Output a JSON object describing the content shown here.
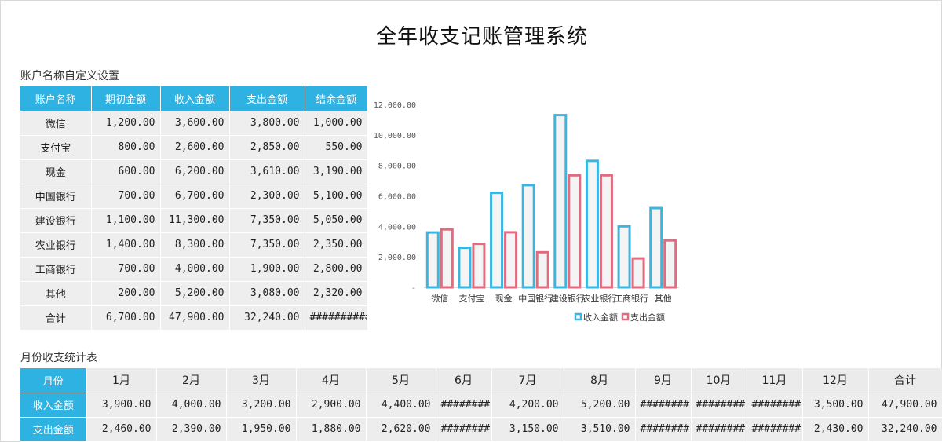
{
  "title": "全年收支记账管理系统",
  "accounts_section": {
    "title": "账户名称自定义设置",
    "headers": [
      "账户名称",
      "期初金额",
      "收入金额",
      "支出金额",
      "结余金额"
    ],
    "rows": [
      [
        "微信",
        "1,200.00",
        "3,600.00",
        "3,800.00",
        "1,000.00"
      ],
      [
        "支付宝",
        "800.00",
        "2,600.00",
        "2,850.00",
        "550.00"
      ],
      [
        "现金",
        "600.00",
        "6,200.00",
        "3,610.00",
        "3,190.00"
      ],
      [
        "中国银行",
        "700.00",
        "6,700.00",
        "2,300.00",
        "5,100.00"
      ],
      [
        "建设银行",
        "1,100.00",
        "11,300.00",
        "7,350.00",
        "5,050.00"
      ],
      [
        "农业银行",
        "1,400.00",
        "8,300.00",
        "7,350.00",
        "2,350.00"
      ],
      [
        "工商银行",
        "700.00",
        "4,000.00",
        "1,900.00",
        "2,800.00"
      ],
      [
        "其他",
        "200.00",
        "5,200.00",
        "3,080.00",
        "2,320.00"
      ],
      [
        "合计",
        "6,700.00",
        "47,900.00",
        "32,240.00",
        "##########"
      ]
    ]
  },
  "monthly_section": {
    "title": "月份收支统计表",
    "header_label": "月份",
    "months": [
      "1月",
      "2月",
      "3月",
      "4月",
      "5月",
      "6月",
      "7月",
      "8月",
      "9月",
      "10月",
      "11月",
      "12月",
      "合计"
    ],
    "rows": [
      {
        "label": "收入金额",
        "values": [
          "3,900.00",
          "4,000.00",
          "3,200.00",
          "2,900.00",
          "4,400.00",
          "########",
          "4,200.00",
          "5,200.00",
          "########",
          "########",
          "########",
          "3,500.00",
          "47,900.00"
        ]
      },
      {
        "label": "支出金额",
        "values": [
          "2,460.00",
          "2,390.00",
          "1,950.00",
          "1,880.00",
          "2,620.00",
          "########",
          "3,150.00",
          "3,510.00",
          "########",
          "########",
          "########",
          "2,430.00",
          "32,240.00"
        ]
      }
    ]
  },
  "chart_data": {
    "type": "bar",
    "categories": [
      "微信",
      "支付宝",
      "现金",
      "中国银行",
      "建设银行",
      "农业银行",
      "工商银行",
      "其他"
    ],
    "series": [
      {
        "name": "收入金额",
        "values": [
          3600,
          2600,
          6200,
          6700,
          11300,
          8300,
          4000,
          5200
        ],
        "color": "#3bb6e0"
      },
      {
        "name": "支出金额",
        "values": [
          3800,
          2850,
          3610,
          2300,
          7350,
          7350,
          1900,
          3080
        ],
        "color": "#e26b7f"
      }
    ],
    "y_ticks": [
      "-",
      "2,000.00",
      "4,000.00",
      "6,000.00",
      "8,000.00",
      "10,000.00",
      "12,000.00"
    ],
    "ylim": [
      0,
      12000
    ],
    "grid": false,
    "legend": "bottom"
  }
}
